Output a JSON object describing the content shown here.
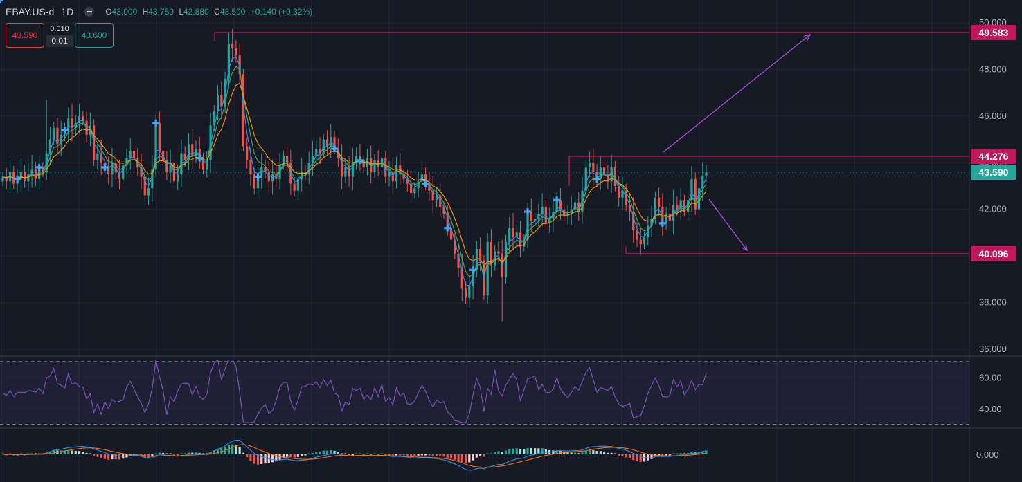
{
  "header": {
    "symbol": "EBAY.US-d",
    "interval": "1D",
    "open_label": "O",
    "open": "43.000",
    "high_label": "H",
    "high": "43.750",
    "low_label": "L",
    "low": "42.880",
    "close_label": "C",
    "close": "43.590",
    "change": "+0.140 (+0.32%)"
  },
  "trade_panel": {
    "sell_price": "43.590",
    "spread": "0.010",
    "quantity": "0.01",
    "buy_price": "43.600"
  },
  "colors": {
    "bull": "#26a69a",
    "bear": "#ef5350",
    "magenta": "#e91e63",
    "arrow": "#b550e0",
    "rsi": "#7e57c2",
    "ma_fast": "#2196f3",
    "ma_mid": "#4caf50",
    "ma_slow": "#ff9800",
    "signal_icon": "#42a5f5"
  },
  "chart_data": [
    {
      "type": "candlestick",
      "title": "EBAY.US-d, 1D",
      "ylim": [
        36,
        50.5
      ],
      "y_ticks": [
        "36.000",
        "38.000",
        "40.000",
        "42.000",
        "44.000",
        "46.000",
        "48.000",
        "50.000"
      ],
      "last_price": "43.590",
      "levels": [
        {
          "label": "49.583",
          "value": 49.583
        },
        {
          "label": "44.276",
          "value": 44.276
        },
        {
          "label": "40.096",
          "value": 40.096
        }
      ],
      "closes": [
        43.4,
        43.2,
        43.6,
        43.1,
        43.3,
        43.6,
        43.2,
        43.5,
        43.7,
        43.3,
        43.8,
        43.6,
        44.4,
        45.0,
        45.5,
        44.8,
        45.2,
        45.4,
        45.9,
        45.5,
        45.7,
        46.0,
        45.8,
        45.2,
        45.6,
        44.1,
        44.4,
        44.0,
        43.8,
        43.5,
        44.0,
        43.6,
        43.3,
        43.9,
        44.2,
        44.5,
        44.2,
        43.8,
        43.4,
        42.6,
        42.9,
        43.7,
        45.7,
        44.5,
        44.1,
        43.6,
        44.0,
        43.2,
        43.5,
        44.4,
        44.1,
        44.8,
        44.3,
        44.6,
        44.2,
        43.7,
        44.1,
        45.6,
        46.2,
        46.9,
        46.4,
        47.6,
        49.1,
        48.9,
        48.6,
        47.8,
        44.7,
        44.1,
        43.5,
        42.9,
        43.4,
        43.8,
        43.6,
        43.2,
        43.5,
        43.3,
        43.9,
        44.3,
        44.0,
        43.1,
        42.8,
        43.3,
        43.6,
        43.5,
        44.0,
        44.3,
        44.6,
        44.4,
        45.0,
        44.7,
        45.1,
        44.6,
        44.2,
        43.4,
        43.8,
        43.4,
        44.0,
        44.3,
        44.1,
        43.8,
        44.2,
        43.6,
        44.1,
        43.8,
        44.2,
        43.4,
        43.6,
        43.2,
        43.9,
        43.5,
        43.3,
        43.1,
        42.7,
        42.9,
        43.2,
        43.5,
        43.1,
        42.8,
        42.4,
        42.6,
        42.1,
        41.8,
        41.2,
        40.7,
        40.1,
        39.5,
        38.6,
        38.2,
        38.7,
        39.4,
        40.3,
        39.8,
        38.3,
        40.6,
        39.6,
        40.2,
        40.1,
        39.1,
        40.6,
        41.2,
        40.8,
        41.0,
        40.4,
        40.7,
        41.9,
        41.5,
        41.6,
        41.8,
        42.1,
        41.4,
        41.6,
        41.9,
        42.4,
        42.0,
        41.7,
        41.8,
        42.0,
        42.3,
        41.9,
        42.8,
        43.8,
        44.0,
        43.6,
        43.3,
        43.8,
        43.5,
        43.2,
        43.8,
        43.0,
        42.5,
        42.8,
        42.2,
        41.9,
        41.1,
        40.7,
        40.5,
        40.8,
        41.3,
        41.6,
        42.5,
        42.1,
        41.4,
        41.8,
        41.5,
        42.2,
        42.0,
        42.4,
        41.9,
        42.4,
        43.3,
        42.0,
        42.9,
        43.45,
        43.59
      ],
      "indicators": [
        "moving average (fast)",
        "moving average (mid)",
        "moving average (slow)"
      ]
    },
    {
      "type": "line",
      "name": "RSI",
      "ylim": [
        28,
        73
      ],
      "y_ticks": [
        "40.00",
        "60.00"
      ],
      "guides": [
        30,
        70
      ]
    },
    {
      "type": "bar",
      "name": "MACD",
      "y_ticks": [
        "0.000"
      ]
    }
  ]
}
